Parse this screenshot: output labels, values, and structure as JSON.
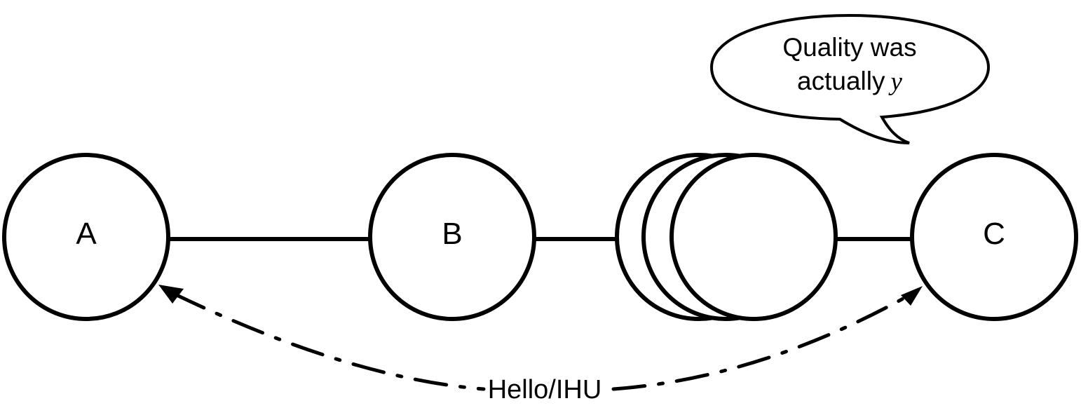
{
  "nodes": {
    "a": {
      "label": "A"
    },
    "b": {
      "label": "B"
    },
    "c": {
      "label": "C"
    }
  },
  "edge": {
    "label": "Hello/IHU"
  },
  "speech_bubble": {
    "line1": "Quality was",
    "line2": "actually",
    "variable": "y"
  }
}
